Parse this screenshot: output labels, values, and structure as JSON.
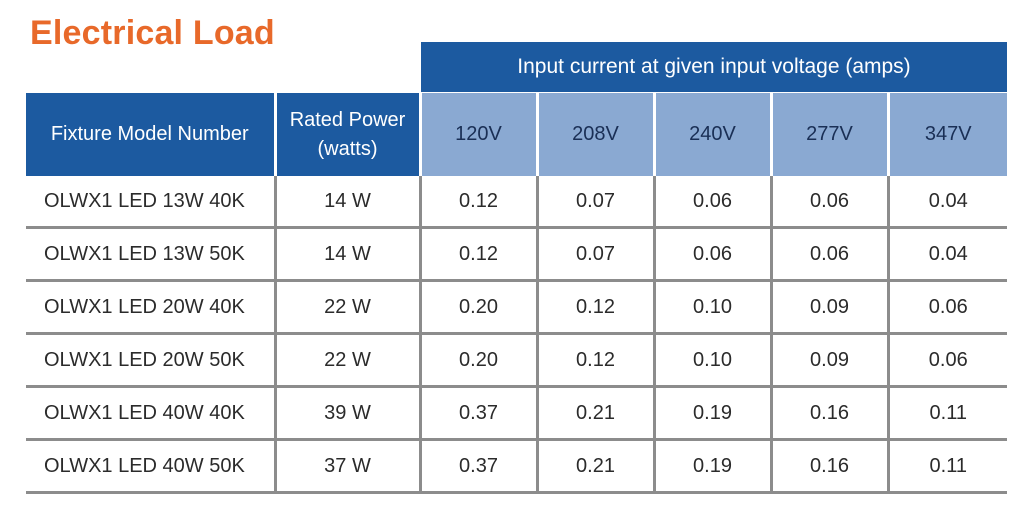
{
  "title": "Electrical Load",
  "group_header": "Input current at given input voltage (amps)",
  "columns": {
    "model": "Fixture Model Number",
    "power_line1": "Rated Power",
    "power_line2": "(watts)",
    "voltages": [
      "120V",
      "208V",
      "240V",
      "277V",
      "347V"
    ]
  },
  "rows": [
    {
      "model": "OLWX1 LED 13W 40K",
      "power": "14 W",
      "currents": [
        "0.12",
        "0.07",
        "0.06",
        "0.06",
        "0.04"
      ]
    },
    {
      "model": "OLWX1 LED 13W 50K",
      "power": "14 W",
      "currents": [
        "0.12",
        "0.07",
        "0.06",
        "0.06",
        "0.04"
      ]
    },
    {
      "model": "OLWX1 LED 20W 40K",
      "power": "22 W",
      "currents": [
        "0.20",
        "0.12",
        "0.10",
        "0.09",
        "0.06"
      ]
    },
    {
      "model": "OLWX1 LED 20W 50K",
      "power": "22 W",
      "currents": [
        "0.20",
        "0.12",
        "0.10",
        "0.09",
        "0.06"
      ]
    },
    {
      "model": "OLWX1 LED 40W 40K",
      "power": "39 W",
      "currents": [
        "0.37",
        "0.21",
        "0.19",
        "0.16",
        "0.11"
      ]
    },
    {
      "model": "OLWX1 LED 40W 50K",
      "power": "37 W",
      "currents": [
        "0.37",
        "0.21",
        "0.19",
        "0.16",
        "0.11"
      ]
    }
  ],
  "colors": {
    "title": "#e8692a",
    "header_dark": "#1c5aa0",
    "header_light": "#8aa9d2",
    "rule": "#8c8c8c"
  }
}
